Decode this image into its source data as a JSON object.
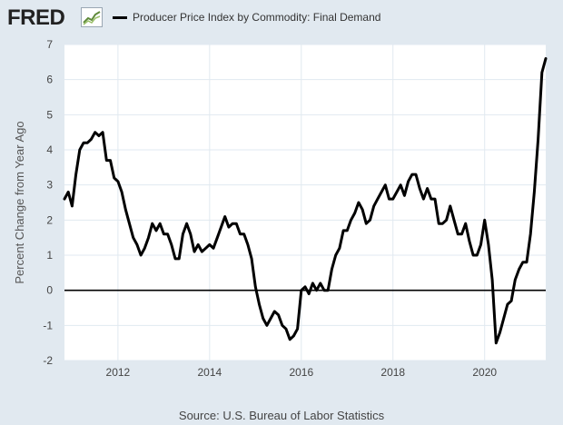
{
  "header": {
    "logo_text": "FRED",
    "logo_icon": "line-chart-icon",
    "legend_label": "Producer Price Index by Commodity: Final Demand",
    "legend_color": "#000000"
  },
  "source": "Source: U.S. Bureau of Labor Statistics",
  "colors": {
    "background": "#e1e9f0",
    "plot_area": "#ffffff",
    "gridline": "#e1e9f0",
    "series": "#000000",
    "zero_line": "#000000"
  },
  "chart_data": {
    "type": "line",
    "title": "",
    "xlabel": "",
    "ylabel": "Percent Change from Year Ago",
    "ylim": [
      -2,
      7
    ],
    "xlim": [
      "2010-11-01",
      "2021-05-01"
    ],
    "yticks": [
      -2,
      -1,
      0,
      1,
      2,
      3,
      4,
      5,
      6,
      7
    ],
    "xticks": [
      "2012",
      "2014",
      "2016",
      "2018",
      "2020"
    ],
    "grid": true,
    "legend_position": "top",
    "series": [
      {
        "name": "Producer Price Index by Commodity: Final Demand",
        "x": [
          "2010-11",
          "2010-12",
          "2011-01",
          "2011-02",
          "2011-03",
          "2011-04",
          "2011-05",
          "2011-06",
          "2011-07",
          "2011-08",
          "2011-09",
          "2011-10",
          "2011-11",
          "2011-12",
          "2012-01",
          "2012-02",
          "2012-03",
          "2012-04",
          "2012-05",
          "2012-06",
          "2012-07",
          "2012-08",
          "2012-09",
          "2012-10",
          "2012-11",
          "2012-12",
          "2013-01",
          "2013-02",
          "2013-03",
          "2013-04",
          "2013-05",
          "2013-06",
          "2013-07",
          "2013-08",
          "2013-09",
          "2013-10",
          "2013-11",
          "2013-12",
          "2014-01",
          "2014-02",
          "2014-03",
          "2014-04",
          "2014-05",
          "2014-06",
          "2014-07",
          "2014-08",
          "2014-09",
          "2014-10",
          "2014-11",
          "2014-12",
          "2015-01",
          "2015-02",
          "2015-03",
          "2015-04",
          "2015-05",
          "2015-06",
          "2015-07",
          "2015-08",
          "2015-09",
          "2015-10",
          "2015-11",
          "2015-12",
          "2016-01",
          "2016-02",
          "2016-03",
          "2016-04",
          "2016-05",
          "2016-06",
          "2016-07",
          "2016-08",
          "2016-09",
          "2016-10",
          "2016-11",
          "2016-12",
          "2017-01",
          "2017-02",
          "2017-03",
          "2017-04",
          "2017-05",
          "2017-06",
          "2017-07",
          "2017-08",
          "2017-09",
          "2017-10",
          "2017-11",
          "2017-12",
          "2018-01",
          "2018-02",
          "2018-03",
          "2018-04",
          "2018-05",
          "2018-06",
          "2018-07",
          "2018-08",
          "2018-09",
          "2018-10",
          "2018-11",
          "2018-12",
          "2019-01",
          "2019-02",
          "2019-03",
          "2019-04",
          "2019-05",
          "2019-06",
          "2019-07",
          "2019-08",
          "2019-09",
          "2019-10",
          "2019-11",
          "2019-12",
          "2020-01",
          "2020-02",
          "2020-03",
          "2020-04",
          "2020-05",
          "2020-06",
          "2020-07",
          "2020-08",
          "2020-09",
          "2020-10",
          "2020-11",
          "2020-12",
          "2021-01",
          "2021-02",
          "2021-03",
          "2021-04",
          "2021-05"
        ],
        "values": [
          2.6,
          2.8,
          2.4,
          3.3,
          4.0,
          4.2,
          4.2,
          4.3,
          4.5,
          4.4,
          4.5,
          3.7,
          3.7,
          3.2,
          3.1,
          2.8,
          2.3,
          1.9,
          1.5,
          1.3,
          1.0,
          1.2,
          1.5,
          1.9,
          1.7,
          1.9,
          1.6,
          1.6,
          1.3,
          0.9,
          0.9,
          1.6,
          1.9,
          1.6,
          1.1,
          1.3,
          1.1,
          1.2,
          1.3,
          1.2,
          1.5,
          1.8,
          2.1,
          1.8,
          1.9,
          1.9,
          1.6,
          1.6,
          1.3,
          0.9,
          0.1,
          -0.4,
          -0.8,
          -1.0,
          -0.8,
          -0.6,
          -0.7,
          -1.0,
          -1.1,
          -1.4,
          -1.3,
          -1.1,
          0.0,
          0.1,
          -0.1,
          0.2,
          0.0,
          0.2,
          0.0,
          0.0,
          0.6,
          1.0,
          1.2,
          1.7,
          1.7,
          2.0,
          2.2,
          2.5,
          2.3,
          1.9,
          2.0,
          2.4,
          2.6,
          2.8,
          3.0,
          2.6,
          2.6,
          2.8,
          3.0,
          2.7,
          3.1,
          3.3,
          3.3,
          2.9,
          2.6,
          2.9,
          2.6,
          2.6,
          1.9,
          1.9,
          2.0,
          2.4,
          2.0,
          1.6,
          1.6,
          1.9,
          1.4,
          1.0,
          1.0,
          1.3,
          2.0,
          1.3,
          0.3,
          -1.5,
          -1.2,
          -0.8,
          -0.4,
          -0.3,
          0.3,
          0.6,
          0.8,
          0.8,
          1.6,
          2.8,
          4.3,
          6.2,
          6.6
        ]
      }
    ]
  }
}
